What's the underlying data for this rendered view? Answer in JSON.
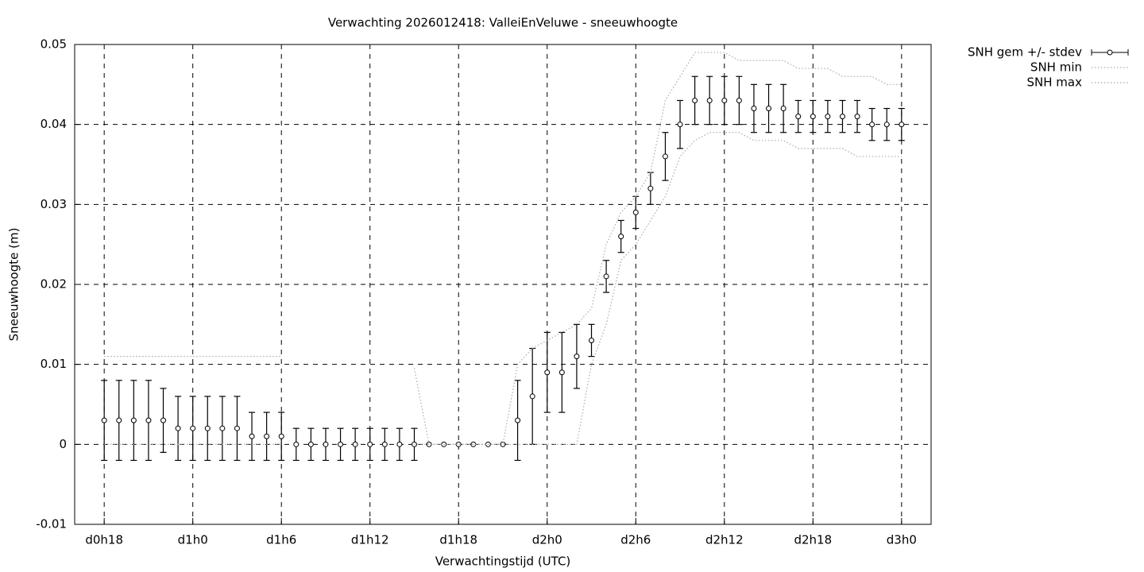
{
  "chart_data": {
    "type": "errorbar",
    "title": "Verwachting 2026012418: ValleiEnVeluwe - sneeuwhoogte",
    "xlabel": "Verwachtingstijd (UTC)",
    "ylabel": "Sneeuwhoogte (m)",
    "x": [
      18,
      19,
      20,
      21,
      22,
      23,
      24,
      25,
      26,
      27,
      28,
      29,
      30,
      31,
      32,
      33,
      34,
      35,
      36,
      37,
      38,
      39,
      40,
      41,
      42,
      43,
      44,
      45,
      46,
      47,
      48,
      49,
      50,
      51,
      52,
      53,
      54,
      55,
      56,
      57,
      58,
      59,
      60,
      61,
      62,
      63,
      64,
      65,
      66,
      67,
      68,
      69,
      70,
      71,
      72
    ],
    "xlim": [
      16,
      74
    ],
    "xticks": [
      {
        "value": 18,
        "label": "d0h18"
      },
      {
        "value": 24,
        "label": "d1h0"
      },
      {
        "value": 30,
        "label": "d1h6"
      },
      {
        "value": 36,
        "label": "d1h12"
      },
      {
        "value": 42,
        "label": "d1h18"
      },
      {
        "value": 48,
        "label": "d2h0"
      },
      {
        "value": 54,
        "label": "d2h6"
      },
      {
        "value": 60,
        "label": "d2h12"
      },
      {
        "value": 66,
        "label": "d2h18"
      },
      {
        "value": 72,
        "label": "d3h0"
      }
    ],
    "ylim": [
      -0.01,
      0.05
    ],
    "yticks": [
      -0.01,
      0,
      0.01,
      0.02,
      0.03,
      0.04,
      0.05
    ],
    "grid": true,
    "legend": "outside-top-right",
    "series": [
      {
        "name": "SNH gem +/- stdev",
        "style": "errorbar",
        "color": "#000000",
        "values": [
          0.003,
          0.003,
          0.003,
          0.003,
          0.003,
          0.002,
          0.002,
          0.002,
          0.002,
          0.002,
          0.001,
          0.001,
          0.001,
          0,
          0,
          0,
          0,
          0,
          0,
          0,
          0,
          0,
          0,
          0,
          0,
          0,
          0,
          0,
          0.003,
          0.006,
          0.009,
          0.009,
          0.011,
          0.013,
          0.021,
          0.026,
          0.029,
          0.032,
          0.036,
          0.04,
          0.043,
          0.043,
          0.043,
          0.043,
          0.042,
          0.042,
          0.042,
          0.041,
          0.041,
          0.041,
          0.041,
          0.041,
          0.04,
          0.04,
          0.04
        ],
        "errors": [
          0.005,
          0.005,
          0.005,
          0.005,
          0.004,
          0.004,
          0.004,
          0.004,
          0.004,
          0.004,
          0.003,
          0.003,
          0.003,
          0.002,
          0.002,
          0.002,
          0.002,
          0.002,
          0.002,
          0.002,
          0.002,
          0.002,
          0,
          0,
          0,
          0,
          0,
          0,
          0.005,
          0.006,
          0.005,
          0.005,
          0.004,
          0.002,
          0.002,
          0.002,
          0.002,
          0.002,
          0.003,
          0.003,
          0.003,
          0.003,
          0.003,
          0.003,
          0.003,
          0.003,
          0.003,
          0.002,
          0.002,
          0.002,
          0.002,
          0.002,
          0.002,
          0.002,
          0.002
        ]
      },
      {
        "name": "SNH min",
        "style": "dotted",
        "color": "#aaaaaa",
        "values": [
          0,
          0,
          0,
          0,
          0,
          0,
          0,
          0,
          0,
          0,
          0,
          0,
          0,
          null,
          null,
          null,
          null,
          null,
          null,
          null,
          null,
          0,
          0,
          0,
          0,
          0,
          0,
          0,
          0,
          0,
          0,
          0,
          0,
          0.01,
          0.015,
          0.023,
          0.025,
          0.028,
          0.031,
          0.036,
          0.038,
          0.039,
          0.039,
          0.039,
          0.038,
          0.038,
          0.038,
          0.037,
          0.037,
          0.037,
          0.037,
          0.036,
          0.036,
          0.036,
          0.036
        ]
      },
      {
        "name": "SNH max",
        "style": "dotted",
        "color": "#aaaaaa",
        "values": [
          0.011,
          0.011,
          0.011,
          0.011,
          0.011,
          0.011,
          0.011,
          0.011,
          0.011,
          0.011,
          0.011,
          0.011,
          0.011,
          null,
          null,
          null,
          null,
          null,
          null,
          null,
          null,
          0.0095,
          0,
          0,
          0,
          0,
          0,
          0,
          0.01,
          0.012,
          0.013,
          0.014,
          0.015,
          0.017,
          0.025,
          0.029,
          0.031,
          0.034,
          0.043,
          0.046,
          0.049,
          0.049,
          0.049,
          0.048,
          0.048,
          0.048,
          0.048,
          0.047,
          0.047,
          0.047,
          0.046,
          0.046,
          0.046,
          0.045,
          0.045
        ]
      }
    ]
  }
}
